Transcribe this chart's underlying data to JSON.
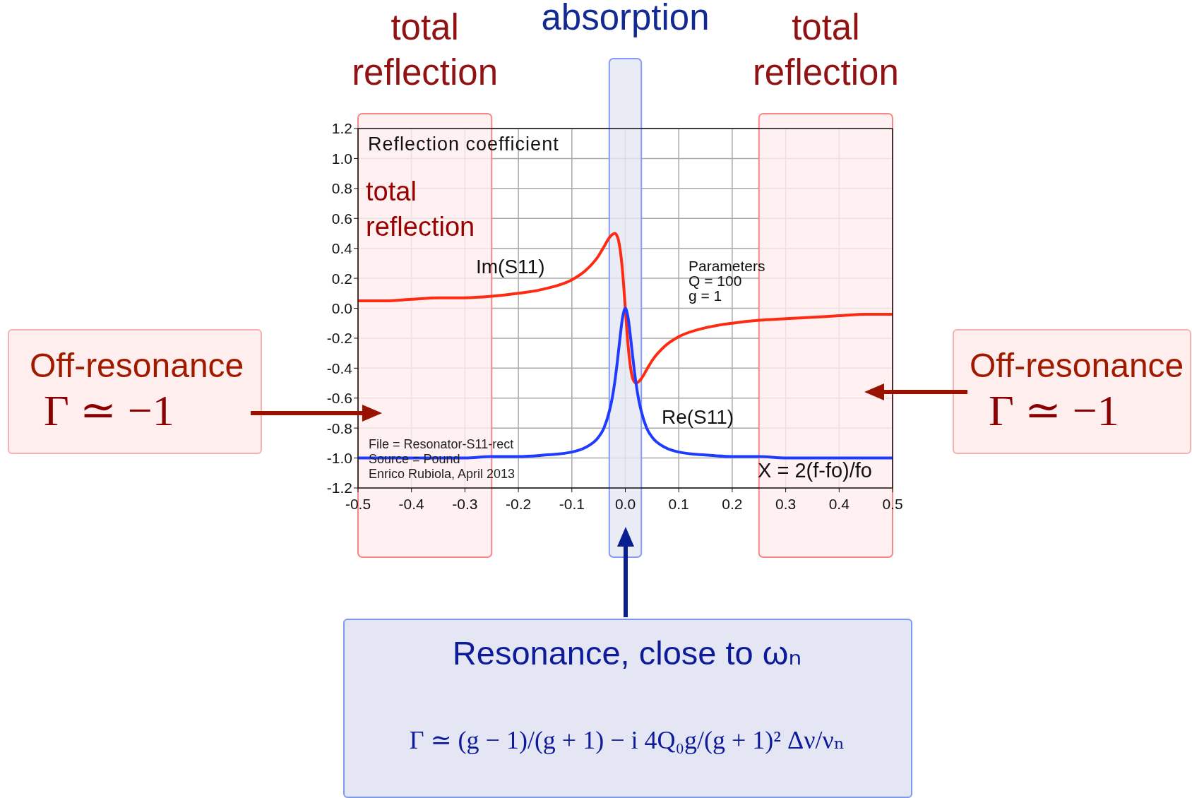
{
  "chart_data": {
    "type": "line",
    "title": "Reflection coefficient",
    "xlabel": "X = 2(f-fo)/fo",
    "x": [
      -0.5,
      -0.45,
      -0.4,
      -0.35,
      -0.3,
      -0.25,
      -0.2,
      -0.15,
      -0.1,
      -0.075,
      -0.05,
      -0.04,
      -0.03,
      -0.025,
      -0.02,
      -0.015,
      -0.01,
      -0.005,
      0,
      0.005,
      0.01,
      0.015,
      0.02,
      0.025,
      0.03,
      0.04,
      0.05,
      0.075,
      0.1,
      0.15,
      0.2,
      0.25,
      0.3,
      0.35,
      0.4,
      0.45,
      0.5
    ],
    "series": [
      {
        "name": "Im(S11)",
        "color": "#ff2a12",
        "values": [
          0.05,
          0.05,
          0.06,
          0.07,
          0.07,
          0.08,
          0.1,
          0.13,
          0.19,
          0.25,
          0.35,
          0.41,
          0.47,
          0.49,
          0.5,
          0.48,
          0.4,
          0.24,
          0,
          -0.24,
          -0.4,
          -0.48,
          -0.5,
          -0.49,
          -0.47,
          -0.41,
          -0.35,
          -0.25,
          -0.19,
          -0.13,
          -0.1,
          -0.08,
          -0.07,
          -0.06,
          -0.05,
          -0.04,
          -0.04
        ]
      },
      {
        "name": "Re(S11)",
        "color": "#1f3bff",
        "values": [
          -1.0,
          -1.0,
          -1.0,
          -1.0,
          -1.0,
          -0.99,
          -0.99,
          -0.98,
          -0.96,
          -0.93,
          -0.86,
          -0.8,
          -0.69,
          -0.61,
          -0.5,
          -0.36,
          -0.2,
          -0.06,
          0,
          -0.06,
          -0.2,
          -0.36,
          -0.5,
          -0.61,
          -0.69,
          -0.8,
          -0.86,
          -0.93,
          -0.96,
          -0.98,
          -0.99,
          -0.99,
          -1.0,
          -1.0,
          -1.0,
          -1.0,
          -1.0
        ]
      }
    ],
    "xlim": [
      -0.5,
      0.5
    ],
    "xticks": [
      -0.5,
      -0.4,
      -0.3,
      -0.2,
      -0.1,
      {
        "value": 0,
        "label": "0.0"
      },
      0.1,
      0.2,
      0.3,
      0.4,
      0.5
    ],
    "ylim": [
      -1.2,
      1.2
    ],
    "yticks": [
      -1.2,
      {
        "value": -1,
        "label": "-1.0"
      },
      -0.8,
      -0.6,
      -0.4,
      -0.2,
      {
        "value": 0,
        "label": "0.0"
      },
      0.2,
      0.4,
      0.6,
      0.8,
      {
        "value": 1,
        "label": "1.0"
      },
      1.2
    ],
    "grid": true,
    "bands": [
      {
        "axis": "x",
        "from": -0.5,
        "to": -0.25,
        "label": "total reflection",
        "color": "#ffeeee"
      },
      {
        "axis": "x",
        "from": -0.03,
        "to": 0.03,
        "label": "absorption",
        "color": "#e3e6f3"
      },
      {
        "axis": "x",
        "from": 0.25,
        "to": 0.5,
        "label": "total reflection",
        "color": "#ffeeee"
      }
    ],
    "annotations": [
      "total reflection",
      "Parameters\nQ = 100\ng = 1",
      "File = Resonator-S11-rect\nSource = Pound\nEnrico Rubiola, April 2013",
      "Off-resonance",
      "Γ ≃ −1",
      "Off-resonance",
      "Γ ≃ −1",
      "Resonance, close to ωₙ",
      "Γ ≃ (g − 1)/(g + 1) − i 4Q₀g/(g + 1)² Δν/νₙ"
    ]
  }
}
